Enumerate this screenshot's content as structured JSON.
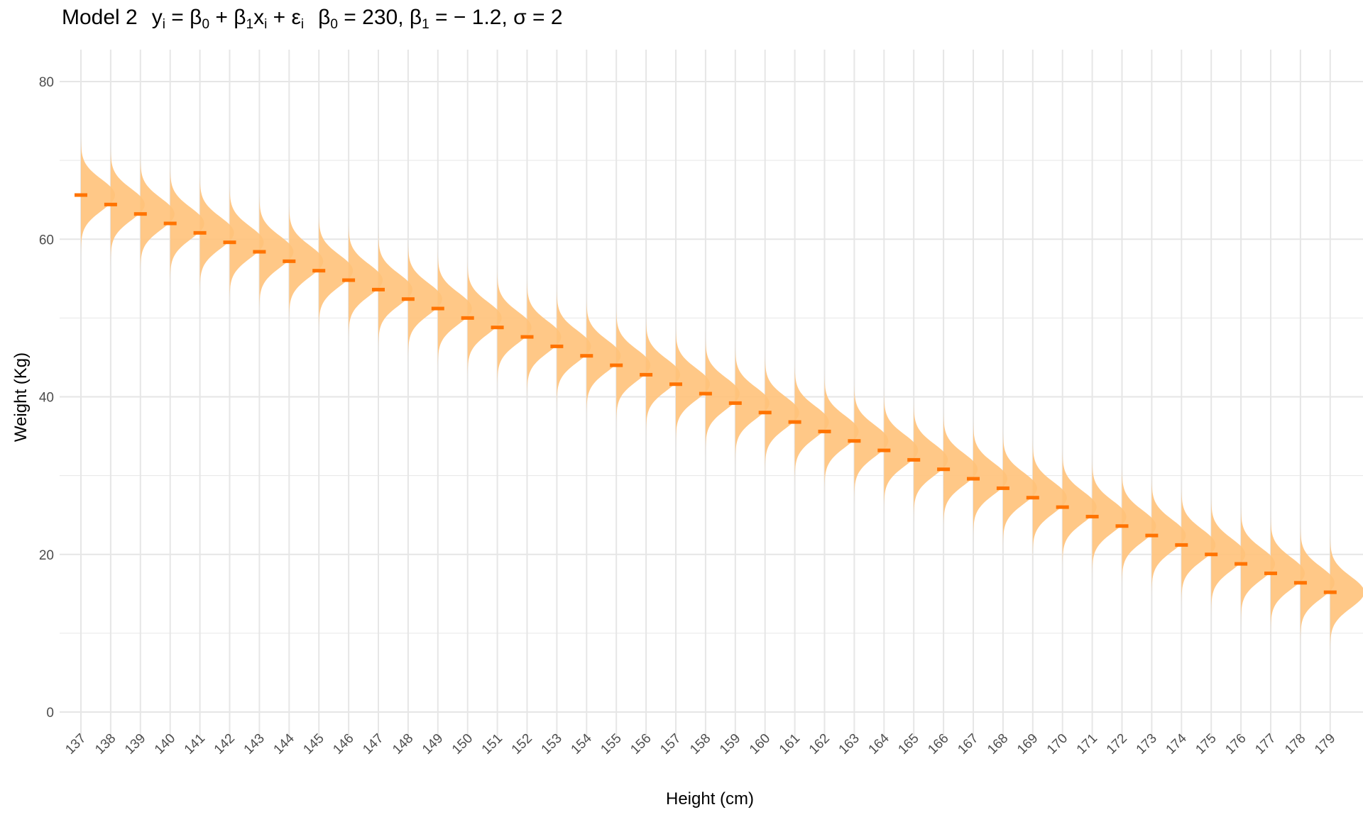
{
  "chart_data": {
    "type": "ridgeline",
    "title": {
      "model": "Model 2",
      "eq_y": "y",
      "eq_i": "i",
      "eq_eq": " = ",
      "eq_beta": "β",
      "eq_0": "0",
      "eq_1": "1",
      "eq_plus": " + ",
      "eq_x": "x",
      "eq_eps": "ε",
      "param_b0_value": " = 230, ",
      "param_b1_value": " = − 1.2, ",
      "param_sigma": "σ = 2"
    },
    "xlabel": "Height (cm)",
    "ylabel": "Weight (Kg)",
    "ylim": [
      -3,
      84
    ],
    "y_ticks": [
      "0",
      "20",
      "40",
      "60",
      "80"
    ],
    "x": [
      "137",
      "138",
      "139",
      "140",
      "141",
      "142",
      "143",
      "144",
      "145",
      "146",
      "147",
      "148",
      "149",
      "150",
      "151",
      "152",
      "153",
      "154",
      "155",
      "156",
      "157",
      "158",
      "159",
      "160",
      "161",
      "162",
      "163",
      "164",
      "165",
      "166",
      "167",
      "168",
      "169",
      "170",
      "171",
      "172",
      "173",
      "174",
      "175",
      "176",
      "177",
      "178",
      "179"
    ],
    "mean_weight": [
      65.6,
      64.4,
      63.2,
      62.0,
      60.8,
      59.6,
      58.4,
      57.2,
      56.0,
      54.8,
      53.6,
      52.4,
      51.2,
      50.0,
      48.8,
      47.6,
      46.4,
      45.2,
      44.0,
      42.8,
      41.6,
      40.4,
      39.2,
      38.0,
      36.8,
      35.6,
      34.4,
      33.2,
      32.0,
      30.8,
      29.6,
      28.4,
      27.2,
      26.0,
      24.8,
      23.6,
      22.4,
      21.2,
      20.0,
      18.8,
      17.6,
      16.4,
      15.2
    ],
    "intercept": 230,
    "slope": -1.2,
    "sigma": 2,
    "density_fill": "#ffc27a",
    "mean_color": "#ff7300",
    "grid": true,
    "grid_color": "#e6e6e6"
  }
}
